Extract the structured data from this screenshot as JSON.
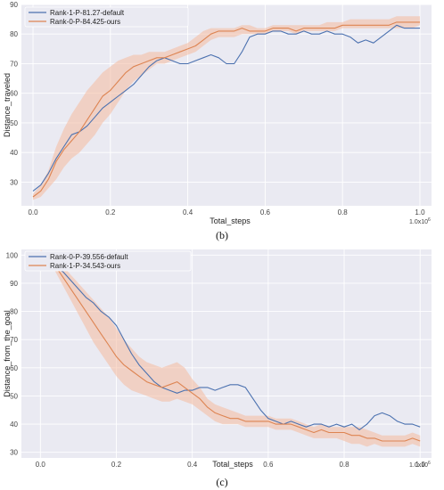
{
  "colors": {
    "background": "#eaeaf2",
    "grid": "#ffffff",
    "default_series": "#4c72b0",
    "ours_series": "#dd8452",
    "ours_band": "#f4b99f"
  },
  "chart_data": [
    {
      "type": "line",
      "caption": "(b)",
      "xlabel": "Total_steps",
      "ylabel": "Distance_traveled",
      "x_multiplier_label": "1.0x10^6",
      "xlim": [
        -0.03,
        1.03
      ],
      "ylim": [
        22,
        90
      ],
      "x_ticks": [
        "0.0",
        "0.2",
        "0.4",
        "0.6",
        "0.8",
        "1.0"
      ],
      "y_ticks": [
        "30",
        "40",
        "50",
        "60",
        "70",
        "80",
        "90"
      ],
      "grid": true,
      "legend_position": "top-left",
      "series": [
        {
          "name": "Rank-1-P-81.27-default",
          "color_key": "default_series",
          "x": [
            0.0,
            0.02,
            0.04,
            0.06,
            0.08,
            0.1,
            0.12,
            0.14,
            0.16,
            0.18,
            0.2,
            0.22,
            0.24,
            0.26,
            0.28,
            0.3,
            0.32,
            0.34,
            0.36,
            0.38,
            0.4,
            0.42,
            0.44,
            0.46,
            0.48,
            0.5,
            0.52,
            0.54,
            0.56,
            0.58,
            0.6,
            0.62,
            0.64,
            0.66,
            0.68,
            0.7,
            0.72,
            0.74,
            0.76,
            0.78,
            0.8,
            0.82,
            0.84,
            0.86,
            0.88,
            0.9,
            0.92,
            0.94,
            0.96,
            0.98,
            1.0
          ],
          "y": [
            27,
            29,
            33,
            38,
            42,
            46,
            47,
            49,
            52,
            55,
            57,
            59,
            61,
            63,
            66,
            69,
            71,
            72,
            71,
            70,
            70,
            71,
            72,
            73,
            72,
            70,
            70,
            74,
            79,
            80,
            80,
            81,
            81,
            80,
            80,
            81,
            80,
            80,
            81,
            80,
            80,
            79,
            77,
            78,
            77,
            79,
            81,
            83,
            82,
            82,
            82
          ]
        },
        {
          "name": "Rank-0-P-84.425-ours",
          "color_key": "ours_series",
          "x": [
            0.0,
            0.02,
            0.04,
            0.06,
            0.08,
            0.1,
            0.12,
            0.14,
            0.16,
            0.18,
            0.2,
            0.22,
            0.24,
            0.26,
            0.28,
            0.3,
            0.32,
            0.34,
            0.36,
            0.38,
            0.4,
            0.42,
            0.44,
            0.46,
            0.48,
            0.5,
            0.52,
            0.54,
            0.56,
            0.58,
            0.6,
            0.62,
            0.64,
            0.66,
            0.68,
            0.7,
            0.72,
            0.74,
            0.76,
            0.78,
            0.8,
            0.82,
            0.84,
            0.86,
            0.88,
            0.9,
            0.92,
            0.94,
            0.96,
            0.98,
            1.0
          ],
          "y": [
            25,
            27,
            31,
            37,
            41,
            44,
            47,
            51,
            55,
            59,
            61,
            64,
            67,
            69,
            70,
            71,
            72,
            72,
            73,
            74,
            75,
            76,
            78,
            80,
            81,
            81,
            81,
            82,
            81,
            81,
            81,
            82,
            82,
            82,
            81,
            82,
            82,
            82,
            82,
            82,
            83,
            83,
            83,
            83,
            83,
            83,
            83,
            84,
            84,
            84,
            84
          ],
          "band_low": [
            24,
            25,
            28,
            31,
            35,
            38,
            40,
            43,
            46,
            50,
            53,
            57,
            61,
            64,
            66,
            68,
            70,
            70,
            71,
            72,
            73,
            74,
            76,
            78,
            79,
            79,
            79,
            80,
            80,
            80,
            80,
            81,
            81,
            81,
            80,
            81,
            81,
            81,
            81,
            81,
            82,
            82,
            82,
            82,
            82,
            82,
            82,
            82,
            82,
            82,
            83
          ],
          "band_high": [
            26,
            29,
            34,
            42,
            48,
            53,
            57,
            61,
            64,
            67,
            69,
            71,
            72,
            73,
            73,
            74,
            74,
            74,
            75,
            76,
            77,
            79,
            81,
            82,
            82,
            82,
            82,
            83,
            83,
            82,
            82,
            83,
            83,
            83,
            83,
            83,
            83,
            83,
            84,
            84,
            84,
            85,
            85,
            85,
            85,
            85,
            85,
            86,
            86,
            86,
            86
          ]
        }
      ]
    },
    {
      "type": "line",
      "caption": "(c)",
      "xlabel": "Total_steps",
      "ylabel": "Distance_from_the_goal",
      "x_multiplier_label": "1.0x10^6",
      "xlim": [
        -0.05,
        1.03
      ],
      "ylim": [
        28,
        102
      ],
      "x_ticks": [
        "0.0",
        "0.2",
        "0.4",
        "0.6",
        "0.8",
        "1.0"
      ],
      "y_ticks": [
        "30",
        "40",
        "50",
        "60",
        "70",
        "80",
        "90",
        "100"
      ],
      "grid": true,
      "legend_position": "top-left",
      "series": [
        {
          "name": "Rank-0-P-39.556-default",
          "color_key": "default_series",
          "x": [
            0.0,
            0.02,
            0.04,
            0.06,
            0.08,
            0.1,
            0.12,
            0.14,
            0.16,
            0.18,
            0.2,
            0.22,
            0.24,
            0.26,
            0.28,
            0.3,
            0.32,
            0.34,
            0.36,
            0.38,
            0.4,
            0.42,
            0.44,
            0.46,
            0.48,
            0.5,
            0.52,
            0.54,
            0.56,
            0.58,
            0.6,
            0.62,
            0.64,
            0.66,
            0.68,
            0.7,
            0.72,
            0.74,
            0.76,
            0.78,
            0.8,
            0.82,
            0.84,
            0.86,
            0.88,
            0.9,
            0.92,
            0.94,
            0.96,
            0.98,
            1.0
          ],
          "y": [
            101,
            99,
            96,
            94,
            91,
            88,
            85,
            83,
            80,
            78,
            75,
            70,
            65,
            61,
            58,
            55,
            53,
            52,
            51,
            52,
            52,
            53,
            53,
            52,
            53,
            54,
            54,
            53,
            49,
            45,
            42,
            41,
            40,
            41,
            40,
            39,
            40,
            40,
            39,
            40,
            39,
            40,
            38,
            40,
            43,
            44,
            43,
            41,
            40,
            40,
            39
          ]
        },
        {
          "name": "Rank-1-P-34.543-ours",
          "color_key": "ours_series",
          "x": [
            0.0,
            0.02,
            0.04,
            0.06,
            0.08,
            0.1,
            0.12,
            0.14,
            0.16,
            0.18,
            0.2,
            0.22,
            0.24,
            0.26,
            0.28,
            0.3,
            0.32,
            0.34,
            0.36,
            0.38,
            0.4,
            0.42,
            0.44,
            0.46,
            0.48,
            0.5,
            0.52,
            0.54,
            0.56,
            0.58,
            0.6,
            0.62,
            0.64,
            0.66,
            0.68,
            0.7,
            0.72,
            0.74,
            0.76,
            0.78,
            0.8,
            0.82,
            0.84,
            0.86,
            0.88,
            0.9,
            0.92,
            0.94,
            0.96,
            0.98,
            1.0
          ],
          "y": [
            101,
            99,
            96,
            92,
            88,
            84,
            80,
            76,
            72,
            68,
            64,
            61,
            59,
            57,
            55,
            54,
            53,
            54,
            55,
            53,
            51,
            49,
            46,
            44,
            43,
            42,
            42,
            41,
            41,
            41,
            41,
            40,
            40,
            40,
            39,
            38,
            37,
            38,
            37,
            37,
            37,
            36,
            36,
            35,
            35,
            34,
            34,
            34,
            34,
            35,
            34
          ],
          "band_low": [
            100,
            98,
            94,
            89,
            84,
            79,
            74,
            69,
            65,
            61,
            57,
            54,
            52,
            51,
            50,
            49,
            48,
            48,
            49,
            48,
            47,
            45,
            43,
            41,
            40,
            40,
            40,
            39,
            39,
            39,
            39,
            38,
            38,
            38,
            37,
            36,
            35,
            35,
            35,
            35,
            34,
            33,
            33,
            32,
            33,
            32,
            32,
            32,
            32,
            33,
            32
          ],
          "band_high": [
            102,
            100,
            98,
            96,
            93,
            90,
            87,
            84,
            81,
            78,
            74,
            70,
            67,
            64,
            62,
            61,
            60,
            61,
            62,
            60,
            56,
            53,
            49,
            47,
            46,
            45,
            44,
            43,
            43,
            43,
            43,
            42,
            42,
            42,
            41,
            40,
            39,
            40,
            39,
            39,
            39,
            39,
            39,
            38,
            37,
            36,
            36,
            36,
            36,
            37,
            36
          ]
        }
      ]
    }
  ]
}
